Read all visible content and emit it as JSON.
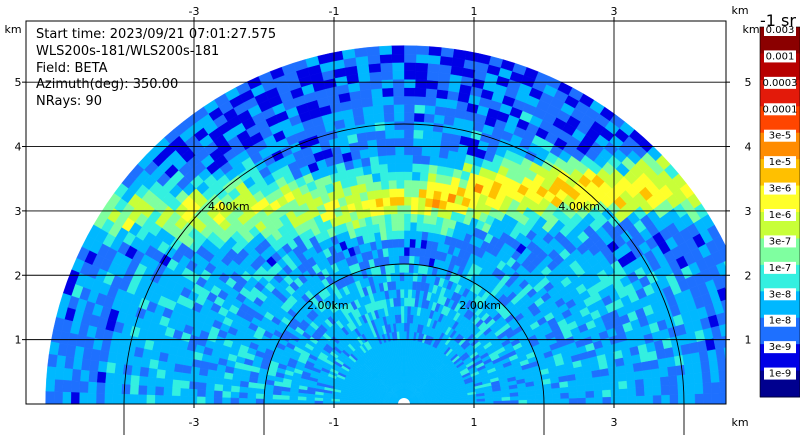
{
  "chart_data": {
    "type": "heatmap",
    "subtype": "radar RHI sector",
    "info_lines": [
      "Start time: 2023/09/21 07:01:27.575",
      "WLS200s-181/WLS200s-181",
      "Field: BETA",
      "Azimuth(deg): 350.00",
      "NRays: 90"
    ],
    "x_unit": "km",
    "y_unit": "km",
    "x_ticks": [
      "-3",
      "-1",
      "1",
      "3"
    ],
    "x_tick_values": [
      -3,
      -1,
      1,
      3
    ],
    "y_ticks": [
      "1",
      "2",
      "3",
      "4",
      "5"
    ],
    "y_tick_values": [
      1,
      2,
      3,
      4,
      5
    ],
    "xlim": [
      -5.4,
      4.6
    ],
    "ylim": [
      0,
      5.95
    ],
    "grid": true,
    "range_rings": [
      {
        "range_km": 2,
        "left_label": "2.00km",
        "right_label": "2.00km"
      },
      {
        "range_km": 4,
        "left_label": "4.00km",
        "right_label": "4.00km"
      }
    ],
    "max_range_km": 5.05,
    "aerosol_layer": {
      "base_height_km": 2.85,
      "peak_height_km": 3.0,
      "description_values": [
        {
          "x": -3.5,
          "y": 2.72
        },
        {
          "x": -2.0,
          "y": 2.78
        },
        {
          "x": -1.0,
          "y": 2.84
        },
        {
          "x": 0.0,
          "y": 2.9
        },
        {
          "x": 1.0,
          "y": 3.0
        },
        {
          "x": 2.0,
          "y": 3.06
        },
        {
          "x": 3.0,
          "y": 3.08
        }
      ]
    },
    "colorbar": {
      "title": "-1 sr",
      "labels": [
        "0.003",
        "0.001",
        "0.0003",
        "0.0001",
        "3e-5",
        "1e-5",
        "3e-6",
        "1e-6",
        "3e-7",
        "1e-7",
        "3e-8",
        "1e-8",
        "3e-9",
        "1e-9"
      ],
      "colors": [
        "#8b0000",
        "#b80000",
        "#e31a0a",
        "#ff4500",
        "#ff8c00",
        "#ffc000",
        "#ffff2a",
        "#c8ff38",
        "#7fffa0",
        "#33f0e0",
        "#00b8ff",
        "#1e70ff",
        "#0000e6",
        "#00008f"
      ]
    }
  }
}
